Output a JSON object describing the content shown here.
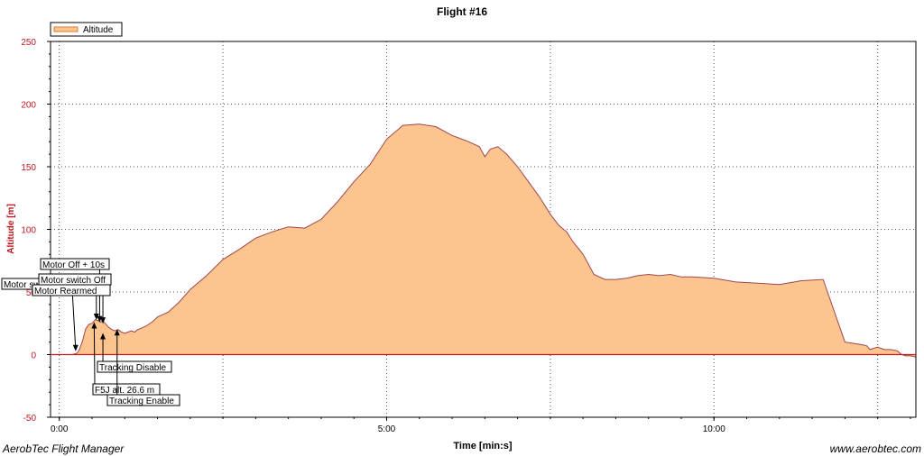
{
  "footer": {
    "left": "AerobTec Flight Manager",
    "right": "www.aerobtec.com"
  },
  "colors": {
    "fill": "#fcc48f",
    "line": "#a0454d",
    "axis_text": "#c2171f",
    "zero_line": "#c2171f"
  },
  "chart_data": {
    "type": "area",
    "title": "Flight #16",
    "xlabel": "Time [min:s]",
    "ylabel": "Altitude [m]",
    "x_unit": "seconds",
    "xlim": [
      -8,
      785
    ],
    "ylim": [
      -50,
      250
    ],
    "yticks": [
      -50,
      0,
      50,
      100,
      150,
      200,
      250
    ],
    "ytick_labels": [
      "-50",
      "0",
      "50",
      "100",
      "150",
      "200",
      "250"
    ],
    "xticks": [
      0,
      300,
      600
    ],
    "xtick_labels": [
      "0:00",
      "5:00",
      "10:00"
    ],
    "grid": true,
    "legend": {
      "position": "top-left",
      "entries": [
        "Altitude"
      ]
    },
    "series": [
      {
        "name": "Altitude",
        "x": [
          0,
          12,
          16,
          18,
          21,
          24,
          27,
          30,
          33,
          36,
          38,
          40,
          42,
          45,
          48,
          51,
          54,
          57,
          60,
          63,
          66,
          69,
          72,
          75,
          80,
          85,
          90,
          100,
          110,
          120,
          135,
          150,
          165,
          180,
          195,
          210,
          225,
          240,
          255,
          270,
          285,
          300,
          315,
          330,
          345,
          360,
          375,
          385,
          390,
          395,
          402,
          410,
          420,
          430,
          440,
          450,
          458,
          465,
          470,
          480,
          490,
          500,
          510,
          520,
          530,
          540,
          550,
          560,
          570,
          580,
          600,
          620,
          640,
          660,
          680,
          700,
          720,
          735,
          740,
          743,
          746,
          750,
          756,
          762,
          768,
          772,
          776,
          780,
          785
        ],
        "y": [
          0,
          0,
          1,
          3,
          10,
          20,
          24,
          25,
          28,
          27,
          26,
          27,
          25,
          22,
          20,
          19,
          20,
          18,
          17,
          18,
          19,
          18,
          20,
          21,
          23,
          26,
          30,
          34,
          42,
          52,
          63,
          76,
          84,
          93,
          98,
          102,
          101,
          108,
          122,
          138,
          152,
          172,
          183,
          184,
          182,
          175,
          170,
          166,
          158,
          164,
          166,
          160,
          150,
          138,
          126,
          112,
          103,
          98,
          91,
          80,
          64,
          60,
          60,
          61,
          63,
          64,
          63,
          64,
          62,
          62,
          61,
          58,
          57,
          56,
          59,
          60,
          10,
          8,
          7,
          4,
          5,
          6,
          4,
          4,
          3,
          0,
          -1,
          -1,
          -2
        ]
      }
    ],
    "annotations": [
      {
        "text": "Motor switch On",
        "x": 15,
        "y": 2
      },
      {
        "text": "Motor Off + 10s",
        "x": 37,
        "y": 25
      },
      {
        "text": "Motor switch Off",
        "x": 34,
        "y": 27
      },
      {
        "text": "Motor Rearmed",
        "x": 40,
        "y": 24
      },
      {
        "text": "F5J alt. 26.6 m",
        "x": 32,
        "y": 26.6
      },
      {
        "text": "Tracking Disable",
        "x": 40,
        "y": 18
      },
      {
        "text": "Tracking Enable",
        "x": 53,
        "y": 21
      }
    ]
  }
}
